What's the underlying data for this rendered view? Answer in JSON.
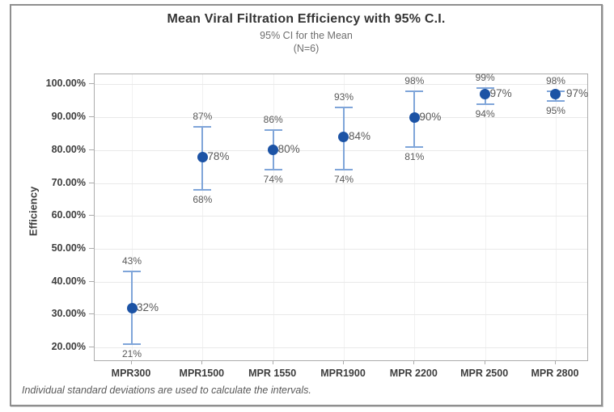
{
  "chart_data": {
    "type": "interval_plot",
    "title": "Mean Viral Filtration Efficiency with 95% C.I.",
    "subtitle": "95% CI for the Mean",
    "sample_size_note": "(N=6)",
    "ylabel": "Efficiency",
    "xlabel": "",
    "footnote": "Individual standard deviations are used to calculate the intervals.",
    "categories": [
      "MPR300",
      "MPR1500",
      "MPR 1550",
      "MPR1900",
      "MPR 2200",
      "MPR 2500",
      "MPR 2800"
    ],
    "series": [
      {
        "name": "Mean with 95% CI",
        "means": [
          32,
          78,
          80,
          84,
          90,
          97,
          97
        ],
        "ci_low": [
          21,
          68,
          74,
          74,
          81,
          94,
          95
        ],
        "ci_high": [
          43,
          87,
          86,
          93,
          98,
          99,
          98
        ]
      }
    ],
    "mean_labels": [
      "32%",
      "78%",
      "80%",
      "84%",
      "90%",
      "97%",
      "97%"
    ],
    "ci_low_labels": [
      "21%",
      "68%",
      "74%",
      "74%",
      "81%",
      "94%",
      "95%"
    ],
    "ci_high_labels": [
      "43%",
      "87%",
      "86%",
      "93%",
      "98%",
      "99%",
      "98%"
    ],
    "y_tick_values": [
      20,
      30,
      40,
      50,
      60,
      70,
      80,
      90,
      100
    ],
    "y_tick_labels": [
      "20.00%",
      "30.00%",
      "40.00%",
      "50.00%",
      "60.00%",
      "70.00%",
      "80.00%",
      "90.00%",
      "100.00%"
    ],
    "ylim": [
      16.1,
      103
    ],
    "grid": "horizontal and vertical light gray gridlines",
    "legend": "none",
    "colors": {
      "point": "#1c53a5",
      "interval_bar": "#7fa5d9",
      "grid_h": "#e9e9e9",
      "grid_v": "#f1f1f1",
      "axis_frame": "#ababab",
      "value_label": "#595959",
      "tick_label": "#3d3d3d",
      "title": "#343434",
      "subtitle": "#6e6e6e"
    }
  }
}
